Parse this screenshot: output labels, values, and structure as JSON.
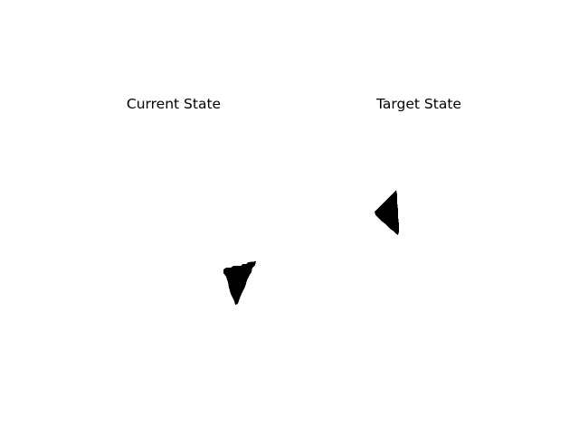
{
  "panels": {
    "current": {
      "title": "Current State"
    },
    "target": {
      "title": "Target State"
    }
  },
  "colors": {
    "background": "#ffffff",
    "shape": "#000000",
    "text": "#000000"
  }
}
